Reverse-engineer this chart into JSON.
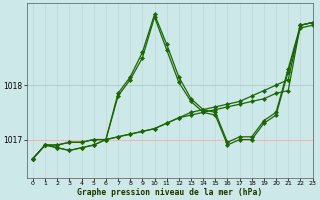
{
  "background_color": "#cce8e8",
  "grid_color": "#aac8c8",
  "line_color": "#1a6600",
  "xlabel": "Graphe pression niveau de la mer (hPa)",
  "xlim": [
    -0.5,
    23
  ],
  "ylim": [
    1016.3,
    1019.5
  ],
  "yticks": [
    1017,
    1018
  ],
  "xticks": [
    0,
    1,
    2,
    3,
    4,
    5,
    6,
    7,
    8,
    9,
    10,
    11,
    12,
    13,
    14,
    15,
    16,
    17,
    18,
    19,
    20,
    21,
    22,
    23
  ],
  "series": [
    {
      "x": [
        0,
        1,
        2,
        3,
        4,
        5,
        6,
        7,
        8,
        9,
        10,
        11,
        12,
        13,
        14,
        15,
        16,
        17,
        18,
        19,
        20,
        21,
        22,
        23
      ],
      "y": [
        1016.65,
        1016.9,
        1016.9,
        1016.95,
        1016.95,
        1017.0,
        1017.0,
        1017.05,
        1017.1,
        1017.15,
        1017.2,
        1017.3,
        1017.4,
        1017.45,
        1017.5,
        1017.55,
        1017.6,
        1017.65,
        1017.7,
        1017.75,
        1017.85,
        1017.9,
        1019.1,
        1019.15
      ]
    },
    {
      "x": [
        0,
        1,
        2,
        3,
        4,
        5,
        6,
        7,
        8,
        9,
        10,
        11,
        12,
        13,
        14,
        15,
        16,
        17,
        18,
        19,
        20,
        21,
        22,
        23
      ],
      "y": [
        1016.65,
        1016.9,
        1016.9,
        1016.95,
        1016.95,
        1017.0,
        1017.0,
        1017.05,
        1017.1,
        1017.15,
        1017.2,
        1017.3,
        1017.4,
        1017.5,
        1017.55,
        1017.6,
        1017.65,
        1017.7,
        1017.8,
        1017.9,
        1018.0,
        1018.1,
        1019.1,
        1019.15
      ]
    },
    {
      "x": [
        0,
        1,
        2,
        3,
        4,
        5,
        6,
        7,
        8,
        9,
        10,
        11,
        12,
        13,
        14,
        15,
        16,
        17,
        18,
        19,
        20,
        21,
        22,
        23
      ],
      "y": [
        1016.65,
        1016.9,
        1016.85,
        1016.8,
        1016.85,
        1016.9,
        1017.0,
        1017.85,
        1018.15,
        1018.6,
        1019.3,
        1018.75,
        1018.15,
        1017.75,
        1017.55,
        1017.5,
        1016.95,
        1017.05,
        1017.05,
        1017.35,
        1017.5,
        1018.3,
        1019.1,
        1019.15
      ]
    },
    {
      "x": [
        0,
        1,
        2,
        3,
        4,
        5,
        6,
        7,
        8,
        9,
        10,
        11,
        12,
        13,
        14,
        15,
        16,
        17,
        18,
        19,
        20,
        21,
        22,
        23
      ],
      "y": [
        1016.65,
        1016.9,
        1016.85,
        1016.8,
        1016.85,
        1016.9,
        1017.0,
        1017.8,
        1018.1,
        1018.5,
        1019.25,
        1018.65,
        1018.05,
        1017.7,
        1017.5,
        1017.45,
        1016.9,
        1017.0,
        1017.0,
        1017.3,
        1017.45,
        1018.25,
        1019.05,
        1019.1
      ]
    }
  ]
}
